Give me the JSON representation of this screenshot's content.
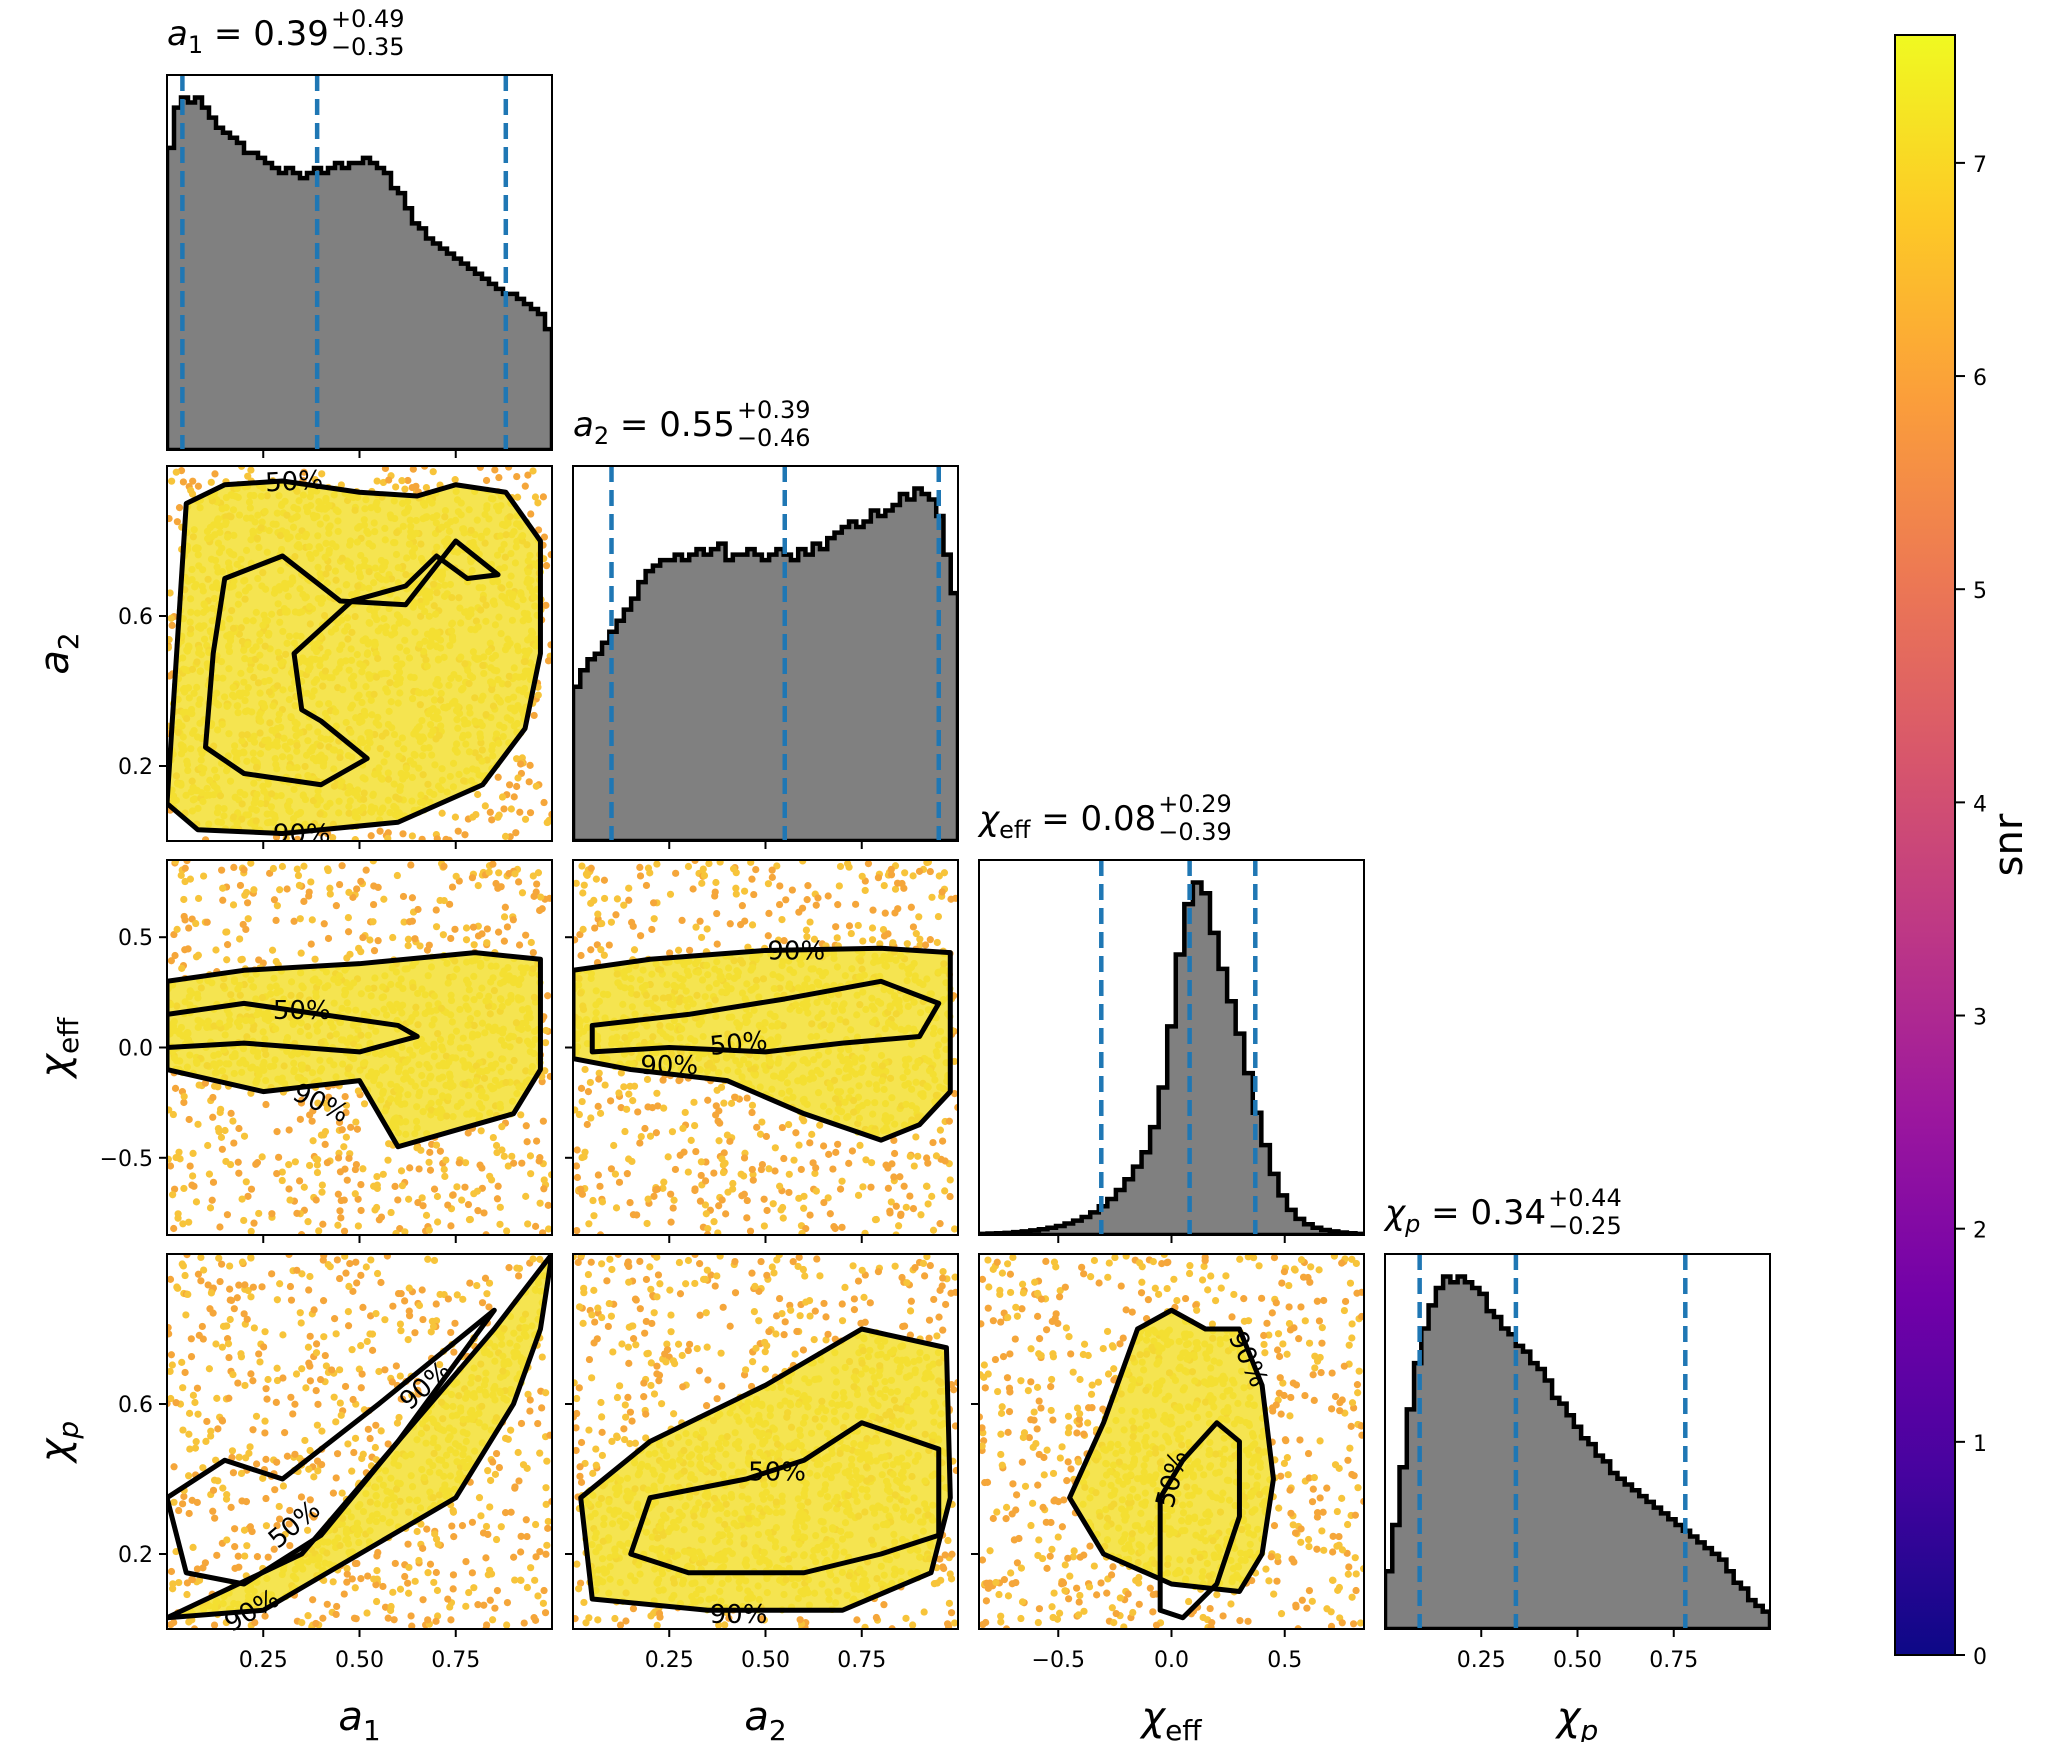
{
  "chart_data": {
    "type": "corner",
    "parameters": [
      {
        "key": "a1",
        "symbol": "a",
        "sub": "1",
        "range": [
          0,
          1
        ],
        "ticks": [
          0.25,
          0.5,
          0.75
        ],
        "tick_labels": [
          "0.25",
          "0.50",
          "0.75"
        ],
        "summary": {
          "median": "0.39",
          "plus": "+0.49",
          "minus": "−0.35"
        },
        "quantiles": [
          0.04,
          0.39,
          0.88
        ],
        "histogram": [
          60,
          68,
          70,
          69,
          70,
          68,
          66,
          64,
          63,
          62,
          61,
          59,
          59,
          58,
          57,
          56,
          55,
          56,
          55,
          54,
          55,
          56,
          55,
          56,
          57,
          56,
          57,
          57,
          58,
          57,
          56,
          55,
          52,
          51,
          48,
          45,
          44,
          42,
          41,
          40,
          39,
          38,
          37,
          36,
          35,
          34,
          33,
          32,
          31,
          31,
          30,
          29,
          28,
          27,
          24
        ]
      },
      {
        "key": "a2",
        "symbol": "a",
        "sub": "2",
        "range": [
          0,
          1
        ],
        "ticks": [
          0.25,
          0.5,
          0.75
        ],
        "tick_labels": [
          "0.25",
          "0.50",
          "0.75"
        ],
        "summary": {
          "median": "0.55",
          "plus": "+0.39",
          "minus": "−0.46"
        },
        "quantiles": [
          0.1,
          0.55,
          0.95
        ],
        "histogram": [
          28,
          31,
          33,
          34,
          36,
          38,
          40,
          42,
          44,
          47,
          49,
          50,
          51,
          51,
          52,
          51,
          52,
          53,
          52,
          53,
          54,
          51,
          52,
          52,
          53,
          52,
          51,
          52,
          53,
          52,
          51,
          53,
          52,
          54,
          53,
          55,
          56,
          57,
          58,
          57,
          58,
          60,
          59,
          60,
          61,
          63,
          62,
          64,
          63,
          62,
          59,
          52,
          45
        ]
      },
      {
        "key": "chi_eff",
        "symbol": "χ",
        "sub": "eff",
        "range": [
          -0.85,
          0.85
        ],
        "ticks": [
          -0.5,
          0.0,
          0.5
        ],
        "tick_labels": [
          "−0.5",
          "0.0",
          "0.5"
        ],
        "summary": {
          "median": "0.08",
          "plus": "+0.29",
          "minus": "−0.39"
        },
        "quantiles": [
          -0.31,
          0.08,
          0.37
        ],
        "histogram": [
          0.3,
          0.4,
          0.5,
          0.6,
          0.8,
          1.0,
          1.3,
          1.6,
          2,
          2.5,
          3.2,
          4,
          5,
          6.3,
          8,
          10,
          12.5,
          15.5,
          19,
          23,
          30,
          41,
          58,
          78,
          92,
          98,
          95,
          84,
          74,
          65,
          56,
          45,
          34,
          25,
          17,
          11,
          7,
          4.5,
          3,
          2,
          1.4,
          1,
          0.7,
          0.5,
          0.3
        ]
      },
      {
        "key": "chi_p",
        "symbol": "χ",
        "sub": "p",
        "range": [
          0,
          1
        ],
        "ticks": [
          0.25,
          0.5,
          0.75
        ],
        "tick_labels": [
          "0.25",
          "0.50",
          "0.75"
        ],
        "summary": {
          "median": "0.34",
          "plus": "+0.44",
          "minus": "−0.25"
        },
        "quantiles": [
          0.09,
          0.34,
          0.78
        ],
        "histogram": [
          10,
          18,
          28,
          38,
          46,
          52,
          56,
          59,
          61,
          60,
          61,
          60,
          59,
          58,
          55,
          54,
          52,
          51,
          49,
          48,
          46,
          45,
          43,
          40,
          39,
          37,
          35,
          33,
          32,
          30,
          29,
          27,
          26,
          25,
          24,
          23,
          22,
          21,
          20,
          19,
          18,
          17,
          16,
          15,
          14,
          13,
          12,
          10,
          8,
          7,
          5,
          4,
          3
        ]
      }
    ],
    "y_tick_sets": {
      "a2": {
        "ticks": [
          0.2,
          0.6
        ],
        "tick_labels": [
          "0.2",
          "0.6"
        ]
      },
      "chi_eff": {
        "ticks": [
          -0.5,
          0.0,
          0.5
        ],
        "tick_labels": [
          "−0.5",
          "0.0",
          "0.5"
        ]
      },
      "chi_p": {
        "ticks": [
          0.2,
          0.6
        ],
        "tick_labels": [
          "0.2",
          "0.6"
        ]
      }
    },
    "contours": {
      "a2__a1": [
        {
          "level": "90%",
          "points": [
            [
              0,
              0.1
            ],
            [
              0.05,
              0.9
            ],
            [
              0.15,
              0.95
            ],
            [
              0.3,
              0.96
            ],
            [
              0.5,
              0.93
            ],
            [
              0.65,
              0.92
            ],
            [
              0.75,
              0.95
            ],
            [
              0.88,
              0.93
            ],
            [
              0.97,
              0.8
            ],
            [
              0.97,
              0.5
            ],
            [
              0.93,
              0.3
            ],
            [
              0.82,
              0.15
            ],
            [
              0.6,
              0.05
            ],
            [
              0.3,
              0.02
            ],
            [
              0.08,
              0.03
            ]
          ]
        },
        {
          "level": "50%",
          "points": [
            [
              0.1,
              0.25
            ],
            [
              0.12,
              0.5
            ],
            [
              0.15,
              0.7
            ],
            [
              0.3,
              0.76
            ],
            [
              0.45,
              0.64
            ],
            [
              0.62,
              0.63
            ],
            [
              0.75,
              0.8
            ],
            [
              0.86,
              0.71
            ],
            [
              0.78,
              0.7
            ],
            [
              0.7,
              0.76
            ],
            [
              0.62,
              0.68
            ],
            [
              0.48,
              0.64
            ],
            [
              0.33,
              0.5
            ],
            [
              0.35,
              0.35
            ],
            [
              0.4,
              0.32
            ],
            [
              0.52,
              0.22
            ],
            [
              0.4,
              0.15
            ],
            [
              0.2,
              0.18
            ]
          ]
        }
      ],
      "chi_eff__a1": [
        {
          "level": "90%",
          "points": [
            [
              0,
              0.3
            ],
            [
              0.2,
              0.35
            ],
            [
              0.5,
              0.38
            ],
            [
              0.8,
              0.43
            ],
            [
              0.97,
              0.4
            ],
            [
              0.97,
              -0.1
            ],
            [
              0.9,
              -0.3
            ],
            [
              0.8,
              -0.35
            ],
            [
              0.6,
              -0.45
            ],
            [
              0.5,
              -0.15
            ],
            [
              0.25,
              -0.2
            ],
            [
              0,
              -0.1
            ]
          ]
        },
        {
          "level": "50%",
          "points": [
            [
              0,
              0.15
            ],
            [
              0.2,
              0.2
            ],
            [
              0.4,
              0.15
            ],
            [
              0.6,
              0.1
            ],
            [
              0.65,
              0.05
            ],
            [
              0.5,
              -0.02
            ],
            [
              0.2,
              0.02
            ],
            [
              0,
              0
            ]
          ]
        }
      ],
      "chi_eff__a2": [
        {
          "level": "90%",
          "points": [
            [
              0,
              0.35
            ],
            [
              0.2,
              0.4
            ],
            [
              0.5,
              0.44
            ],
            [
              0.8,
              0.45
            ],
            [
              0.98,
              0.43
            ],
            [
              0.98,
              -0.2
            ],
            [
              0.9,
              -0.35
            ],
            [
              0.8,
              -0.42
            ],
            [
              0.6,
              -0.3
            ],
            [
              0.4,
              -0.15
            ],
            [
              0.15,
              -0.1
            ],
            [
              0,
              -0.05
            ]
          ]
        },
        {
          "level": "50%",
          "points": [
            [
              0.05,
              0.1
            ],
            [
              0.3,
              0.15
            ],
            [
              0.55,
              0.22
            ],
            [
              0.8,
              0.3
            ],
            [
              0.95,
              0.2
            ],
            [
              0.9,
              0.05
            ],
            [
              0.7,
              0.02
            ],
            [
              0.5,
              -0.02
            ],
            [
              0.25,
              0.0
            ],
            [
              0.05,
              -0.02
            ]
          ]
        }
      ],
      "chi_p__a1": [
        {
          "level": "90%",
          "points": [
            [
              0,
              0.03
            ],
            [
              0.35,
              0.2
            ],
            [
              0.6,
              0.5
            ],
            [
              0.85,
              0.8
            ],
            [
              1,
              1
            ],
            [
              0.97,
              0.8
            ],
            [
              0.9,
              0.6
            ],
            [
              0.75,
              0.35
            ],
            [
              0.5,
              0.2
            ],
            [
              0.25,
              0.05
            ]
          ]
        },
        {
          "level": "50%",
          "points": [
            [
              0,
              0.35
            ],
            [
              0.15,
              0.45
            ],
            [
              0.3,
              0.4
            ],
            [
              0.55,
              0.6
            ],
            [
              0.85,
              0.85
            ],
            [
              0.6,
              0.5
            ],
            [
              0.4,
              0.25
            ],
            [
              0.2,
              0.12
            ],
            [
              0.05,
              0.15
            ]
          ]
        }
      ],
      "chi_p__a2": [
        {
          "level": "90%",
          "points": [
            [
              0.02,
              0.35
            ],
            [
              0.2,
              0.5
            ],
            [
              0.5,
              0.65
            ],
            [
              0.75,
              0.8
            ],
            [
              0.97,
              0.75
            ],
            [
              0.98,
              0.35
            ],
            [
              0.93,
              0.15
            ],
            [
              0.7,
              0.05
            ],
            [
              0.35,
              0.05
            ],
            [
              0.05,
              0.08
            ]
          ]
        },
        {
          "level": "50%",
          "points": [
            [
              0.15,
              0.2
            ],
            [
              0.2,
              0.35
            ],
            [
              0.45,
              0.4
            ],
            [
              0.6,
              0.45
            ],
            [
              0.75,
              0.55
            ],
            [
              0.95,
              0.48
            ],
            [
              0.95,
              0.25
            ],
            [
              0.8,
              0.2
            ],
            [
              0.6,
              0.15
            ],
            [
              0.3,
              0.15
            ]
          ]
        }
      ],
      "chi_p__chi_eff": [
        {
          "level": "90%",
          "points": [
            [
              -0.45,
              0.35
            ],
            [
              -0.3,
              0.55
            ],
            [
              -0.15,
              0.8
            ],
            [
              0.0,
              0.85
            ],
            [
              0.15,
              0.8
            ],
            [
              0.3,
              0.8
            ],
            [
              0.4,
              0.65
            ],
            [
              0.45,
              0.4
            ],
            [
              0.4,
              0.2
            ],
            [
              0.3,
              0.1
            ],
            [
              0.0,
              0.12
            ],
            [
              -0.3,
              0.2
            ]
          ]
        },
        {
          "level": "50%",
          "points": [
            [
              -0.05,
              0.05
            ],
            [
              -0.05,
              0.35
            ],
            [
              0.05,
              0.45
            ],
            [
              0.2,
              0.55
            ],
            [
              0.3,
              0.5
            ],
            [
              0.3,
              0.3
            ],
            [
              0.2,
              0.12
            ],
            [
              0.05,
              0.03
            ]
          ]
        }
      ]
    },
    "contour_labels": [
      {
        "panel": "a2__a1",
        "text": "50%",
        "x": 0.33,
        "y": 0.96,
        "angle": -3
      },
      {
        "panel": "a2__a1",
        "text": "90%",
        "x": 0.35,
        "y": 0.02,
        "angle": 0
      },
      {
        "panel": "chi_eff__a1",
        "text": "50%",
        "x": 0.35,
        "y": 0.17,
        "angle": 0
      },
      {
        "panel": "chi_eff__a1",
        "text": "90%",
        "x": 0.4,
        "y": -0.25,
        "angle": 25
      },
      {
        "panel": "chi_eff__a2",
        "text": "90%",
        "x": 0.58,
        "y": 0.44,
        "angle": 0
      },
      {
        "panel": "chi_eff__a2",
        "text": "50%",
        "x": 0.43,
        "y": 0.02,
        "angle": -6
      },
      {
        "panel": "chi_eff__a2",
        "text": "90%",
        "x": 0.25,
        "y": -0.08,
        "angle": 0
      },
      {
        "panel": "chi_p__a1",
        "text": "90%",
        "x": 0.67,
        "y": 0.65,
        "angle": -42
      },
      {
        "panel": "chi_p__a1",
        "text": "50%",
        "x": 0.33,
        "y": 0.28,
        "angle": -40
      },
      {
        "panel": "chi_p__a1",
        "text": "90%",
        "x": 0.22,
        "y": 0.05,
        "angle": -30
      },
      {
        "panel": "chi_p__a2",
        "text": "50%",
        "x": 0.53,
        "y": 0.42,
        "angle": 0
      },
      {
        "panel": "chi_p__a2",
        "text": "90%",
        "x": 0.43,
        "y": 0.04,
        "angle": 0
      },
      {
        "panel": "chi_p__chi_eff",
        "text": "50%",
        "x": 0.0,
        "y": 0.4,
        "angle": -75
      },
      {
        "panel": "chi_p__chi_eff",
        "text": "90%",
        "x": 0.34,
        "y": 0.72,
        "angle": 65
      }
    ],
    "colors": {
      "hist_fill": "#808080",
      "quantile_line": "#1f77b4",
      "contour": "#000000",
      "scatter_main": "#f3df31",
      "scatter_edge": "#f5a63a",
      "colormap": [
        "#0d0887",
        "#46039f",
        "#7201a8",
        "#9c179e",
        "#bd3786",
        "#d8576b",
        "#ed7953",
        "#fb9f3a",
        "#fdca26",
        "#f0f921"
      ]
    },
    "colorbar": {
      "label": "snr",
      "range": [
        0,
        7.6
      ],
      "ticks": [
        0,
        1,
        2,
        3,
        4,
        5,
        6,
        7
      ],
      "tick_labels": [
        "0",
        "1",
        "2",
        "3",
        "4",
        "5",
        "6",
        "7"
      ]
    }
  }
}
